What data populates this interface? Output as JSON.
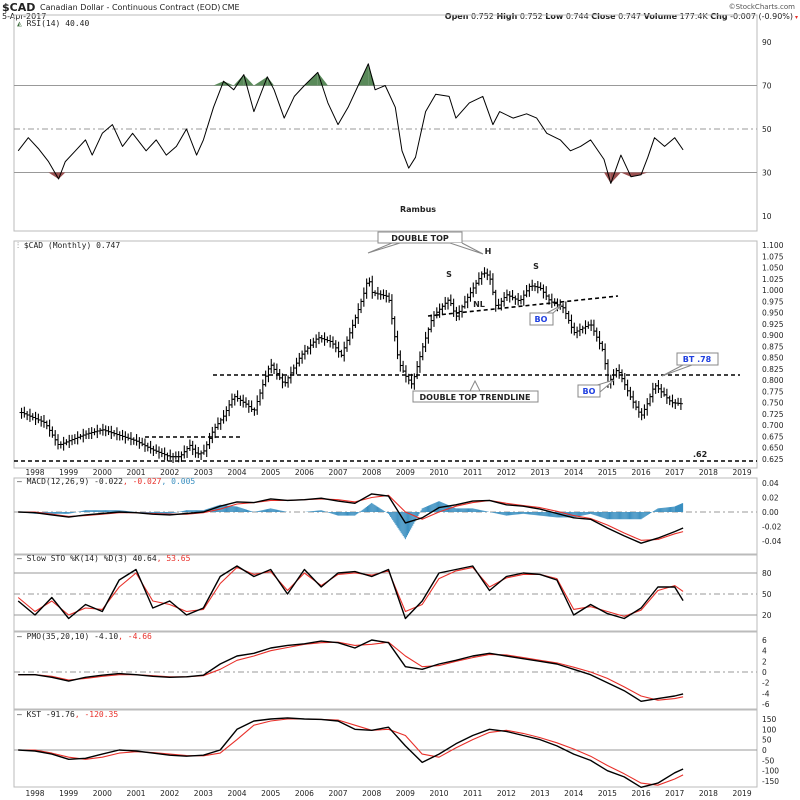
{
  "header": {
    "symbol": "$CAD",
    "name": "Canadian Dollar - Continuous Contract (EOD)",
    "exchange": "CME",
    "date": "5-Apr-2017",
    "copyright": "©StockCharts.com",
    "open_label": "Open",
    "open": "0.752",
    "high_label": "High",
    "high": "0.752",
    "low_label": "Low",
    "low": "0.744",
    "close_label": "Close",
    "close": "0.747",
    "volume_label": "Volume",
    "volume": "177.4K",
    "chg_label": "Chg",
    "chg": "-0.007 (-0.90%)"
  },
  "colors": {
    "red": "#e8302a",
    "blue": "#3a8fc0",
    "green": "#5a8a5a",
    "redfill": "#9a5050"
  },
  "chart_data": [
    {
      "type": "line",
      "title": "RSI(14) 40.40",
      "panel": "rsi",
      "ticks": [
        "90",
        "70",
        "50",
        "30",
        "10"
      ],
      "tick_values": [
        90,
        70,
        50,
        30,
        10
      ],
      "annotation": "Rambus",
      "x": [
        1997.5,
        1997.8,
        1998.1,
        1998.4,
        1998.7,
        1998.9,
        1999.2,
        1999.5,
        1999.7,
        2000.0,
        2000.3,
        2000.6,
        2000.9,
        2001.3,
        2001.6,
        2001.9,
        2002.2,
        2002.5,
        2002.8,
        2003.0,
        2003.3,
        2003.6,
        2003.9,
        2004.2,
        2004.5,
        2004.9,
        2005.1,
        2005.4,
        2005.7,
        2006.0,
        2006.4,
        2006.7,
        2007.0,
        2007.3,
        2007.6,
        2007.9,
        2008.1,
        2008.4,
        2008.7,
        2008.9,
        2009.1,
        2009.3,
        2009.6,
        2009.9,
        2010.3,
        2010.5,
        2010.9,
        2011.3,
        2011.6,
        2011.8,
        2012.2,
        2012.6,
        2012.9,
        2013.2,
        2013.6,
        2013.9,
        2014.2,
        2014.5,
        2014.9,
        2015.1,
        2015.4,
        2015.7,
        2016.0,
        2016.2,
        2016.4,
        2016.7,
        2017.0,
        2017.25
      ],
      "values": [
        40,
        46,
        41,
        35,
        27,
        35,
        40,
        45,
        38,
        48,
        52,
        42,
        48,
        40,
        45,
        38,
        42,
        50,
        38,
        45,
        60,
        72,
        68,
        75,
        58,
        74,
        68,
        55,
        65,
        70,
        76,
        62,
        52,
        60,
        70,
        80,
        68,
        70,
        60,
        40,
        32,
        37,
        58,
        66,
        65,
        55,
        62,
        65,
        52,
        58,
        55,
        57,
        55,
        48,
        45,
        40,
        42,
        45,
        36,
        25,
        38,
        28,
        29,
        37,
        46,
        42,
        46,
        40.4
      ]
    },
    {
      "type": "ohlc",
      "title": "$CAD (Monthly) 0.747",
      "panel": "price",
      "ticks": [
        "1.100",
        "1.075",
        "1.050",
        "1.025",
        "1.000",
        "0.975",
        "0.950",
        "0.925",
        "0.900",
        "0.875",
        "0.850",
        "0.825",
        "0.800",
        "0.775",
        "0.750",
        "0.725",
        "0.700",
        "0.675",
        "0.650",
        "0.625"
      ],
      "tick_values": [
        1.1,
        1.075,
        1.05,
        1.025,
        1.0,
        0.975,
        0.95,
        0.925,
        0.9,
        0.875,
        0.85,
        0.825,
        0.8,
        0.775,
        0.75,
        0.725,
        0.7,
        0.675,
        0.65,
        0.625
      ],
      "x_ticks": [
        "1998",
        "1999",
        "2000",
        "2001",
        "2002",
        "2003",
        "2004",
        "2005",
        "2006",
        "2007",
        "2008",
        "2009",
        "2010",
        "2011",
        "2012",
        "2013",
        "2014",
        "2015",
        "2016",
        "2017",
        "2018",
        "2019"
      ],
      "keypoints": [
        [
          1997.6,
          0.728
        ],
        [
          1998.3,
          0.705
        ],
        [
          1998.7,
          0.655
        ],
        [
          1999.0,
          0.665
        ],
        [
          1999.5,
          0.68
        ],
        [
          2000.0,
          0.69
        ],
        [
          2000.6,
          0.675
        ],
        [
          2001.0,
          0.665
        ],
        [
          2001.5,
          0.645
        ],
        [
          2002.0,
          0.63
        ],
        [
          2002.3,
          0.63
        ],
        [
          2002.6,
          0.655
        ],
        [
          2002.8,
          0.635
        ],
        [
          2003.0,
          0.64
        ],
        [
          2003.3,
          0.69
        ],
        [
          2003.6,
          0.72
        ],
        [
          2003.9,
          0.765
        ],
        [
          2004.3,
          0.745
        ],
        [
          2004.5,
          0.73
        ],
        [
          2004.9,
          0.82
        ],
        [
          2005.0,
          0.835
        ],
        [
          2005.4,
          0.79
        ],
        [
          2005.9,
          0.855
        ],
        [
          2006.4,
          0.895
        ],
        [
          2006.8,
          0.885
        ],
        [
          2007.1,
          0.855
        ],
        [
          2007.5,
          0.935
        ],
        [
          2007.8,
          1.0
        ],
        [
          2007.9,
          1.03
        ],
        [
          2008.0,
          0.995
        ],
        [
          2008.5,
          0.985
        ],
        [
          2008.8,
          0.84
        ],
        [
          2009.0,
          0.81
        ],
        [
          2009.2,
          0.79
        ],
        [
          2009.5,
          0.87
        ],
        [
          2009.8,
          0.94
        ],
        [
          2010.3,
          0.98
        ],
        [
          2010.5,
          0.94
        ],
        [
          2010.9,
          0.99
        ],
        [
          2011.3,
          1.04
        ],
        [
          2011.5,
          1.03
        ],
        [
          2011.7,
          0.96
        ],
        [
          2012.0,
          0.99
        ],
        [
          2012.4,
          0.975
        ],
        [
          2012.7,
          1.01
        ],
        [
          2013.0,
          1.005
        ],
        [
          2013.3,
          0.975
        ],
        [
          2013.7,
          0.96
        ],
        [
          2014.0,
          0.905
        ],
        [
          2014.5,
          0.925
        ],
        [
          2014.9,
          0.86
        ],
        [
          2015.0,
          0.79
        ],
        [
          2015.3,
          0.825
        ],
        [
          2015.7,
          0.76
        ],
        [
          2016.0,
          0.72
        ],
        [
          2016.2,
          0.75
        ],
        [
          2016.4,
          0.79
        ],
        [
          2016.9,
          0.75
        ],
        [
          2017.25,
          0.747
        ]
      ],
      "annotations": {
        "double_top": "DOUBLE TOP",
        "h": "H",
        "s_left": "S",
        "s_right": "S",
        "nl": "NL",
        "bo1": "BO",
        "bo2": "BO",
        "trendline": "DOUBLE TOP TRENDLINE",
        "bt": "BT .78",
        "fib": ".62"
      }
    },
    {
      "type": "line",
      "panel": "macd",
      "title_main": "MACD(12,26,9) -0.022",
      "title_signal": ", -0.027",
      "title_hist": ", 0.005",
      "ticks": [
        "0.04",
        "0.02",
        "0.00",
        "-0.02",
        "-0.04"
      ],
      "tick_values": [
        0.04,
        0.02,
        0,
        -0.02,
        -0.04
      ],
      "x": [
        1997.5,
        1998,
        1998.5,
        1999,
        1999.5,
        2000,
        2000.5,
        2001,
        2001.5,
        2002,
        2002.5,
        2003,
        2003.5,
        2004,
        2004.5,
        2005,
        2005.5,
        2006,
        2006.5,
        2007,
        2007.5,
        2008,
        2008.5,
        2009,
        2009.5,
        2010,
        2010.5,
        2011,
        2011.5,
        2012,
        2012.5,
        2013,
        2013.5,
        2014,
        2014.5,
        2015,
        2015.5,
        2016,
        2016.5,
        2017,
        2017.25
      ],
      "macd": [
        0,
        -0.001,
        -0.004,
        -0.007,
        -0.004,
        -0.002,
        0,
        -0.001,
        -0.003,
        -0.004,
        -0.002,
        0,
        0.008,
        0.014,
        0.013,
        0.018,
        0.016,
        0.017,
        0.019,
        0.015,
        0.012,
        0.025,
        0.022,
        -0.015,
        -0.008,
        0.006,
        0.01,
        0.015,
        0.016,
        0.01,
        0.008,
        0.004,
        -0.002,
        -0.008,
        -0.01,
        -0.022,
        -0.033,
        -0.043,
        -0.036,
        -0.027,
        -0.022
      ],
      "signal": [
        0,
        0,
        -0.003,
        -0.006,
        -0.005,
        -0.003,
        -0.001,
        -0.001,
        -0.002,
        -0.003,
        -0.003,
        -0.001,
        0.004,
        0.011,
        0.013,
        0.016,
        0.016,
        0.017,
        0.018,
        0.017,
        0.014,
        0.02,
        0.023,
        0,
        -0.01,
        0,
        0.008,
        0.013,
        0.016,
        0.012,
        0.009,
        0.006,
        0.001,
        -0.005,
        -0.009,
        -0.018,
        -0.029,
        -0.039,
        -0.038,
        -0.03,
        -0.027
      ]
    },
    {
      "type": "line",
      "panel": "sto",
      "title_main": "Slow STO %K(14) %D(3) 40.64",
      "title_signal": ", 53.65",
      "ticks": [
        "80",
        "50",
        "20"
      ],
      "tick_values": [
        80,
        50,
        20
      ],
      "x": [
        1997.5,
        1998,
        1998.5,
        1999,
        1999.5,
        2000,
        2000.5,
        2001,
        2001.5,
        2002,
        2002.5,
        2003,
        2003.5,
        2004,
        2004.5,
        2005,
        2005.5,
        2006,
        2006.5,
        2007,
        2007.5,
        2008,
        2008.5,
        2009,
        2009.5,
        2010,
        2010.5,
        2011,
        2011.5,
        2012,
        2012.5,
        2013,
        2013.5,
        2014,
        2014.5,
        2015,
        2015.5,
        2016,
        2016.5,
        2017,
        2017.25
      ],
      "k": [
        40,
        20,
        45,
        15,
        35,
        25,
        70,
        85,
        30,
        40,
        20,
        30,
        75,
        90,
        75,
        85,
        50,
        85,
        60,
        80,
        82,
        75,
        85,
        15,
        40,
        80,
        85,
        90,
        55,
        75,
        80,
        78,
        70,
        20,
        35,
        22,
        15,
        30,
        60,
        60,
        40.64
      ],
      "d": [
        45,
        25,
        40,
        20,
        30,
        28,
        60,
        80,
        40,
        35,
        25,
        28,
        65,
        88,
        78,
        82,
        55,
        80,
        62,
        78,
        80,
        77,
        83,
        25,
        35,
        72,
        83,
        88,
        60,
        73,
        78,
        78,
        72,
        28,
        32,
        25,
        18,
        27,
        55,
        62,
        53.65
      ]
    },
    {
      "type": "line",
      "panel": "pmo",
      "title_main": "PMO(35,20,10) -4.10",
      "title_signal": ", -4.66",
      "ticks": [
        "6",
        "4",
        "2",
        "0",
        "-2",
        "-4",
        "-6"
      ],
      "tick_values": [
        6,
        4,
        2,
        0,
        -2,
        -4,
        -6
      ],
      "x": [
        1997.5,
        1998,
        1998.5,
        1999,
        1999.5,
        2000,
        2000.5,
        2001,
        2001.5,
        2002,
        2002.5,
        2003,
        2003.5,
        2004,
        2004.5,
        2005,
        2005.5,
        2006,
        2006.5,
        2007,
        2007.5,
        2008,
        2008.5,
        2009,
        2009.5,
        2010,
        2010.5,
        2011,
        2011.5,
        2012,
        2012.5,
        2013,
        2013.5,
        2014,
        2014.5,
        2015,
        2015.5,
        2016,
        2016.5,
        2017,
        2017.25
      ],
      "pmo": [
        -0.5,
        -0.5,
        -1,
        -1.7,
        -1,
        -0.6,
        -0.3,
        -0.5,
        -0.8,
        -1,
        -0.9,
        -0.6,
        1.5,
        3,
        3.5,
        4.5,
        5,
        5.3,
        5.8,
        5.5,
        4.5,
        6,
        5.5,
        1,
        0.5,
        1.5,
        2.2,
        3,
        3.5,
        3,
        2.5,
        2,
        1.5,
        0.5,
        -0.5,
        -2,
        -3.5,
        -5.5,
        -5,
        -4.5,
        -4.1
      ],
      "signal": [
        -0.5,
        -0.5,
        -0.8,
        -1.5,
        -1.2,
        -0.8,
        -0.5,
        -0.5,
        -0.7,
        -0.9,
        -0.9,
        -0.7,
        0.5,
        2.2,
        3,
        4,
        4.6,
        5.2,
        5.5,
        5.6,
        5,
        5.2,
        5.6,
        3,
        1,
        1.2,
        2,
        2.7,
        3.3,
        3.2,
        2.7,
        2.2,
        1.7,
        0.9,
        0,
        -1.2,
        -2.8,
        -4.5,
        -5.3,
        -5,
        -4.66
      ]
    },
    {
      "type": "line",
      "panel": "kst",
      "title_main": "KST -91.76",
      "title_signal": ", -120.35",
      "ticks": [
        "150",
        "100",
        "50",
        "0",
        "-50",
        "-100",
        "-150"
      ],
      "tick_values": [
        150,
        100,
        50,
        0,
        -50,
        -100,
        -150
      ],
      "x_ticks": [
        "1998",
        "1999",
        "2000",
        "2001",
        "2002",
        "2003",
        "2004",
        "2005",
        "2006",
        "2007",
        "2008",
        "2009",
        "2010",
        "2011",
        "2012",
        "2013",
        "2014",
        "2015",
        "2016",
        "2017",
        "2018",
        "2019"
      ],
      "x": [
        1997.5,
        1998,
        1998.5,
        1999,
        1999.5,
        2000,
        2000.5,
        2001,
        2001.5,
        2002,
        2002.5,
        2003,
        2003.5,
        2004,
        2004.5,
        2005,
        2005.5,
        2006,
        2006.5,
        2007,
        2007.5,
        2008,
        2008.5,
        2009,
        2009.5,
        2010,
        2010.5,
        2011,
        2011.5,
        2012,
        2012.5,
        2013,
        2013.5,
        2014,
        2014.5,
        2015,
        2015.5,
        2016,
        2016.5,
        2017,
        2017.25
      ],
      "kst": [
        0,
        -5,
        -20,
        -45,
        -40,
        -20,
        0,
        -5,
        -15,
        -25,
        -30,
        -25,
        0,
        100,
        140,
        150,
        155,
        150,
        148,
        140,
        100,
        95,
        110,
        20,
        -60,
        -20,
        30,
        70,
        100,
        90,
        70,
        50,
        20,
        -20,
        -50,
        -100,
        -130,
        -180,
        -160,
        -110,
        -91.76
      ],
      "signal": [
        0,
        0,
        -15,
        -35,
        -45,
        -35,
        -15,
        -8,
        -12,
        -20,
        -27,
        -28,
        -15,
        50,
        120,
        140,
        150,
        150,
        148,
        145,
        120,
        95,
        100,
        70,
        -20,
        -35,
        10,
        50,
        85,
        95,
        80,
        60,
        35,
        5,
        -30,
        -75,
        -115,
        -160,
        -170,
        -140,
        -120.35
      ]
    }
  ]
}
